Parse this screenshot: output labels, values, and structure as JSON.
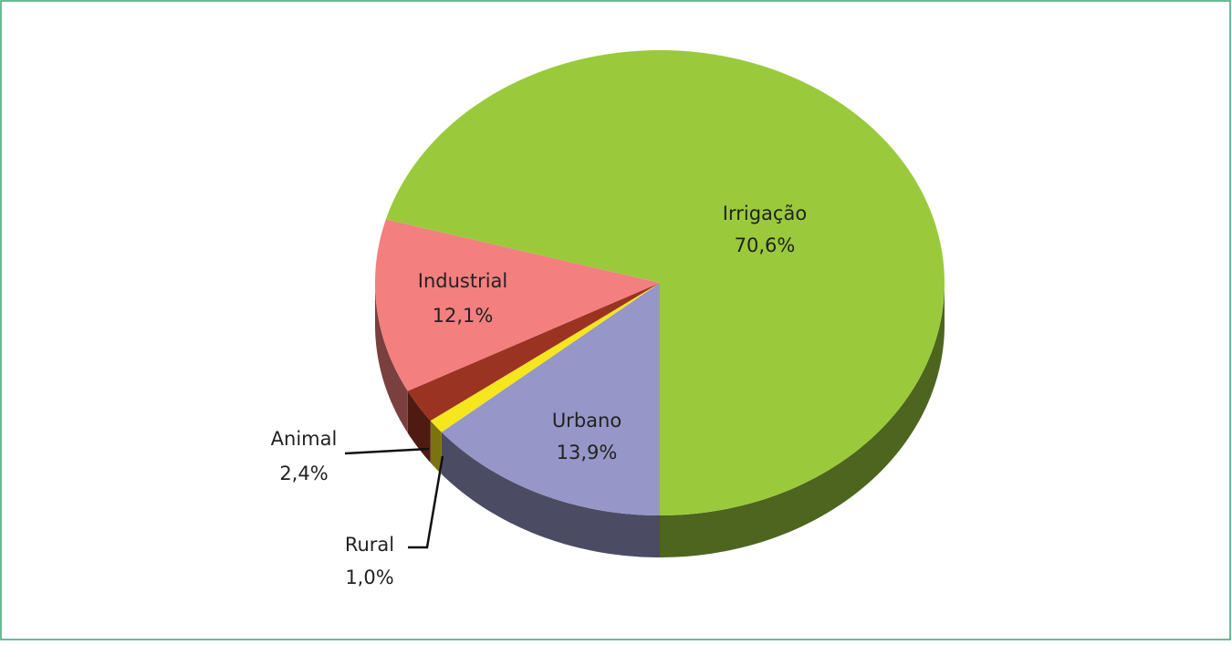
{
  "chart_data": {
    "type": "pie",
    "three_d": true,
    "categories": [
      "Urbano",
      "Rural",
      "Animal",
      "Industrial",
      "Irrigação"
    ],
    "values": [
      13.9,
      1.0,
      2.4,
      12.1,
      70.6
    ],
    "value_labels": [
      "13,9%",
      "1,0%",
      "2,4%",
      "12,1%",
      "70,6%"
    ],
    "colors": [
      "#9696c8",
      "#f5e61e",
      "#9b3322",
      "#f47f7f",
      "#9aca3c"
    ]
  }
}
